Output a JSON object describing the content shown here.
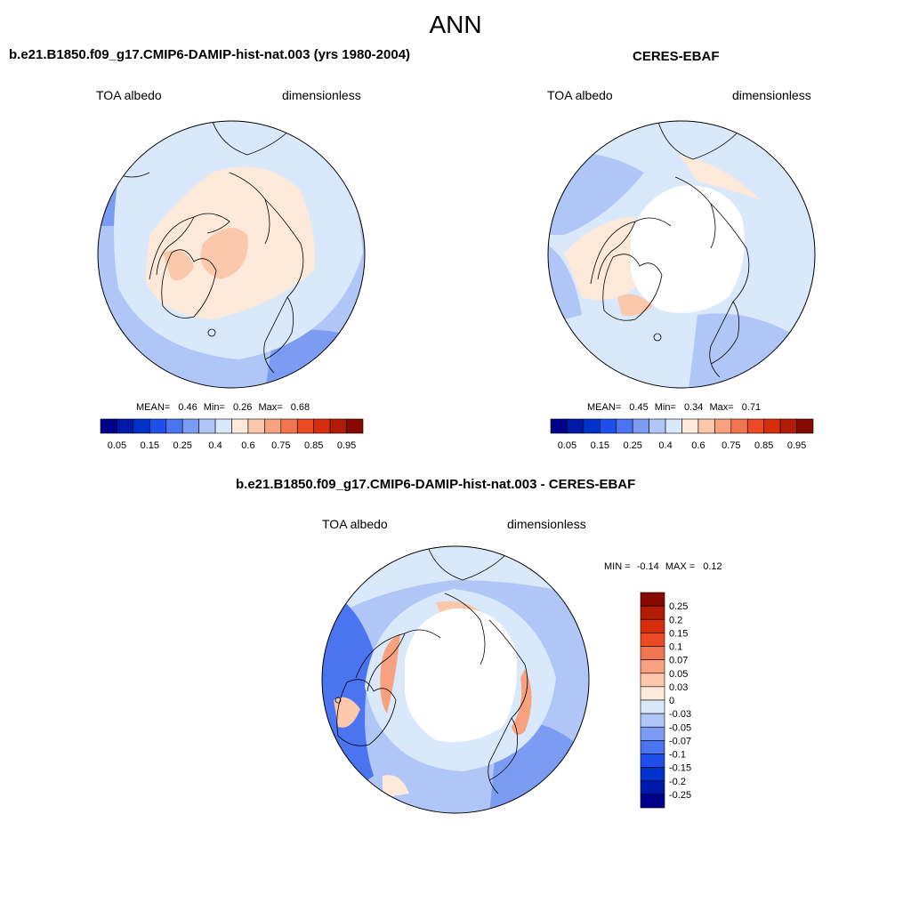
{
  "title": "ANN",
  "panels": [
    {
      "id": "model",
      "title": "b.e21.B1850.f09_g17.CMIP6-DAMIP-hist-nat.003 (yrs 1980-2004)",
      "left_label": "TOA albedo",
      "right_label": "dimensionless",
      "stats": {
        "mean_label": "MEAN=",
        "mean": "0.46",
        "min_label": "Min=",
        "min": "0.26",
        "max_label": "Max=",
        "max": "0.68"
      }
    },
    {
      "id": "obs",
      "title": "CERES-EBAF",
      "left_label": "TOA albedo",
      "right_label": "dimensionless",
      "stats": {
        "mean_label": "MEAN=",
        "mean": "0.45",
        "min_label": "Min=",
        "min": "0.34",
        "max_label": "Max=",
        "max": "0.71"
      }
    }
  ],
  "diff_panel": {
    "title": "b.e21.B1850.f09_g17.CMIP6-DAMIP-hist-nat.003 - CERES-EBAF",
    "left_label": "TOA albedo",
    "right_label": "dimensionless",
    "minmax": {
      "min_label": "MIN =",
      "min": "-0.14",
      "max_label": "MAX =",
      "max": "0.12"
    }
  },
  "colorbar_main": {
    "colors": [
      "#00008b",
      "#0019a8",
      "#0033cc",
      "#1f4fea",
      "#4a74f0",
      "#7c9cf4",
      "#b0c6f7",
      "#dae8fb",
      "#fde9da",
      "#fbc8ac",
      "#f7a17e",
      "#f27551",
      "#ec4a23",
      "#d62e0b",
      "#b01c05",
      "#870a00"
    ],
    "labels": [
      "0.05",
      "0.15",
      "0.25",
      "0.4",
      "0.6",
      "0.75",
      "0.85",
      "0.95"
    ]
  },
  "colorbar_diff": {
    "colors": [
      "#00008b",
      "#0019a8",
      "#0033cc",
      "#1f4fea",
      "#4a74f0",
      "#7c9cf4",
      "#b0c6f7",
      "#dae8fb",
      "#fde9da",
      "#fbc8ac",
      "#f7a17e",
      "#f27551",
      "#ec4a23",
      "#d62e0b",
      "#b01c05",
      "#870a00"
    ],
    "labels": [
      "0.25",
      "0.2",
      "0.15",
      "0.1",
      "0.07",
      "0.05",
      "0.03",
      "0",
      "-0.03",
      "-0.05",
      "-0.07",
      "-0.1",
      "-0.15",
      "-0.2",
      "-0.25"
    ]
  },
  "palette": {
    "light_blue": "#dae8fb",
    "mid_blue": "#b0c6f7",
    "blue": "#7c9cf4",
    "deep_blue": "#4a74f0",
    "peach": "#fde9da",
    "salmon": "#fbc8ac",
    "orange": "#f7a17e",
    "white": "#ffffff"
  }
}
